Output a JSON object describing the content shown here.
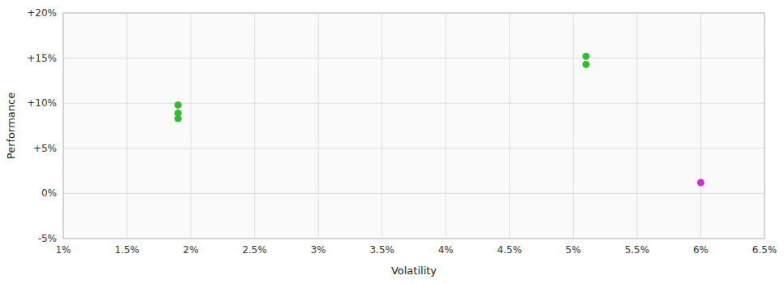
{
  "chart_data": {
    "type": "scatter",
    "xlabel": "Volatility",
    "ylabel": "Performance",
    "xlim": [
      0.01,
      0.065
    ],
    "ylim": [
      -0.05,
      0.2
    ],
    "xticks": [
      {
        "value": 0.01,
        "label": "1%"
      },
      {
        "value": 0.015,
        "label": "1.5%"
      },
      {
        "value": 0.02,
        "label": "2%"
      },
      {
        "value": 0.025,
        "label": "2.5%"
      },
      {
        "value": 0.03,
        "label": "3%"
      },
      {
        "value": 0.035,
        "label": "3.5%"
      },
      {
        "value": 0.04,
        "label": "4%"
      },
      {
        "value": 0.045,
        "label": "4.5%"
      },
      {
        "value": 0.05,
        "label": "5%"
      },
      {
        "value": 0.055,
        "label": "5.5%"
      },
      {
        "value": 0.06,
        "label": "6%"
      },
      {
        "value": 0.065,
        "label": "6.5%"
      }
    ],
    "yticks": [
      {
        "value": -0.05,
        "label": "-5%"
      },
      {
        "value": 0.0,
        "label": "0%"
      },
      {
        "value": 0.05,
        "label": "+5%"
      },
      {
        "value": 0.1,
        "label": "+10%"
      },
      {
        "value": 0.15,
        "label": "+15%"
      },
      {
        "value": 0.2,
        "label": "+20%"
      }
    ],
    "grid": true,
    "series": [
      {
        "color": "#33bb33",
        "marker": "circle",
        "x": [
          0.019,
          0.019,
          0.019,
          0.051,
          0.051
        ],
        "values": [
          0.098,
          0.089,
          0.083,
          0.152,
          0.143
        ]
      },
      {
        "color": "#cc33cc",
        "marker": "circle",
        "x": [
          0.06
        ],
        "values": [
          0.012
        ]
      }
    ]
  }
}
